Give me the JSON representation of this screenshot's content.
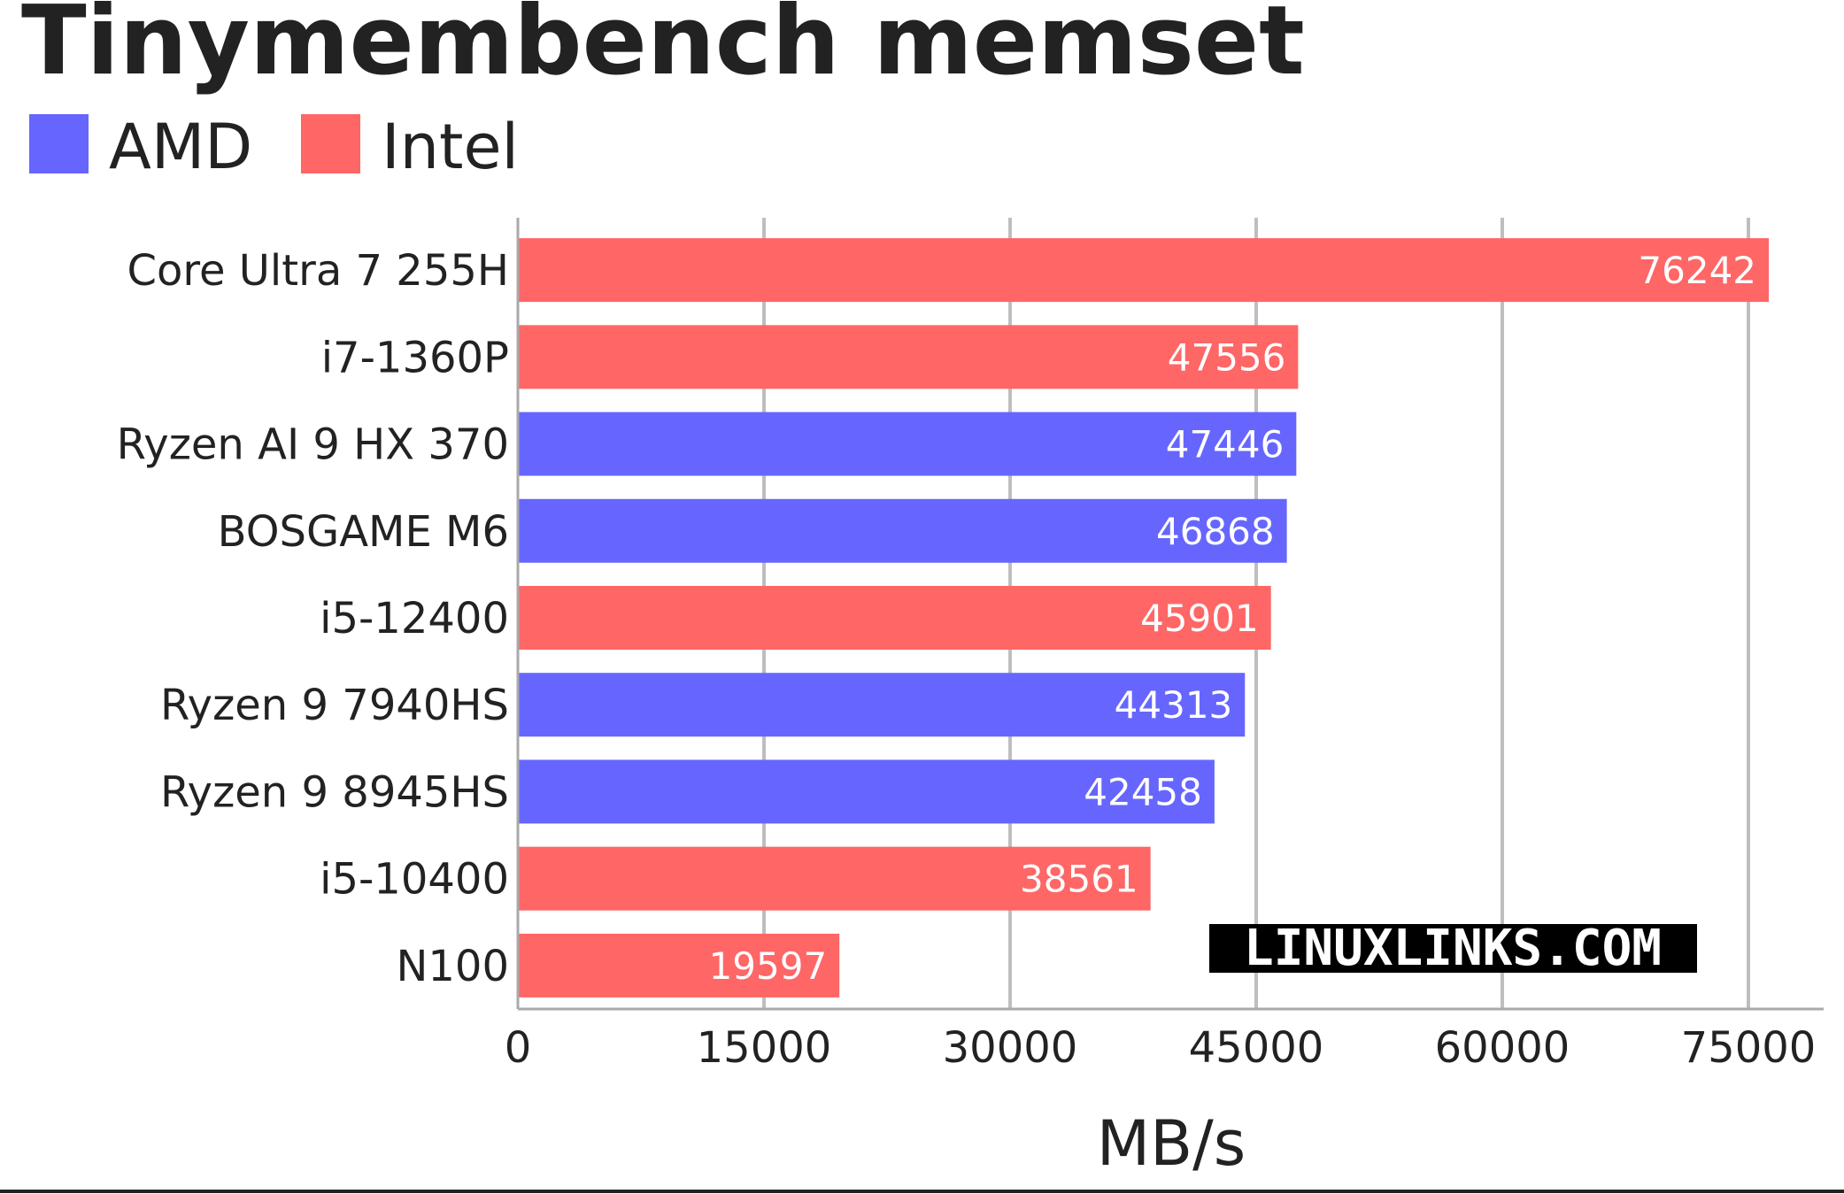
{
  "chart_data": {
    "type": "bar",
    "orientation": "horizontal",
    "title": "Tinymembench memset",
    "xlabel": "MB/s",
    "ylabel": "",
    "xlim": [
      0,
      78000
    ],
    "xticks": [
      0,
      15000,
      30000,
      45000,
      60000,
      75000
    ],
    "grid": true,
    "legend_position": "top-left",
    "legend": [
      {
        "name": "AMD",
        "color": "#6666ff"
      },
      {
        "name": "Intel",
        "color": "#ff6666"
      }
    ],
    "categories": [
      "Core Ultra 7 255H",
      "i7-1360P",
      "Ryzen AI 9 HX 370",
      "BOSGAME M6",
      "i5-12400",
      "Ryzen 9 7940HS",
      "Ryzen 9 8945HS",
      "i5-10400",
      "N100"
    ],
    "values": [
      76242,
      47556,
      47446,
      46868,
      45901,
      44313,
      42458,
      38561,
      19597
    ],
    "groups": [
      "Intel",
      "Intel",
      "AMD",
      "AMD",
      "Intel",
      "AMD",
      "AMD",
      "Intel",
      "Intel"
    ]
  },
  "watermark": "LINUXLINKS.COM"
}
